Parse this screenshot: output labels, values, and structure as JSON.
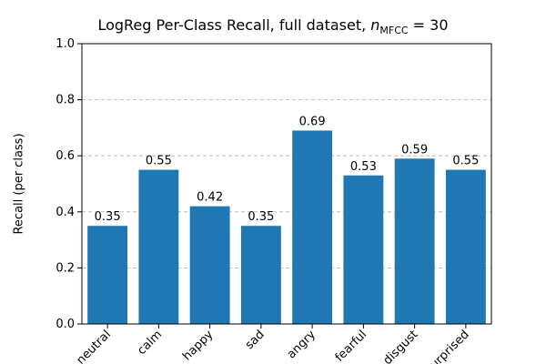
{
  "chart_data": {
    "type": "bar",
    "title": "LogReg Per-Class Recall, full dataset, n_MFCC = 30",
    "title_parts": {
      "main": "LogReg Per-Class Recall, full dataset, ",
      "var": "n",
      "sub": "MFCC",
      "eq": " = 30"
    },
    "ylabel": "Recall (per class)",
    "xlabel": "",
    "ylim": [
      0,
      1.0
    ],
    "yticks": [
      "0.0",
      "0.2",
      "0.4",
      "0.6",
      "0.8",
      "1.0"
    ],
    "grid": "y-dashed",
    "categories": [
      "neutral",
      "calm",
      "happy",
      "sad",
      "angry",
      "fearful",
      "disgust",
      "surprised"
    ],
    "values": [
      0.35,
      0.55,
      0.42,
      0.35,
      0.69,
      0.53,
      0.59,
      0.55
    ],
    "labels": [
      "0.35",
      "0.55",
      "0.42",
      "0.35",
      "0.69",
      "0.53",
      "0.59",
      "0.55"
    ],
    "bar_color": "#1f77b4"
  }
}
